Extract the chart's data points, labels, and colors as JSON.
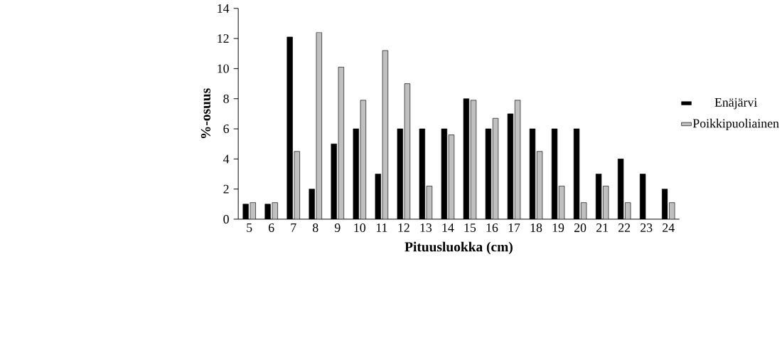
{
  "chart_data": {
    "type": "bar",
    "xlabel": "Pituusluokka (cm)",
    "ylabel": "%-osuus",
    "categories": [
      "5",
      "6",
      "7",
      "8",
      "9",
      "10",
      "11",
      "12",
      "13",
      "14",
      "15",
      "16",
      "17",
      "18",
      "19",
      "20",
      "21",
      "22",
      "23",
      "24"
    ],
    "series": [
      {
        "name": "Enäjärvi",
        "color": "#000000",
        "values": [
          1,
          1,
          12.1,
          2,
          5,
          6,
          3,
          6,
          6,
          6,
          8,
          6,
          7,
          6,
          6,
          6,
          3,
          4,
          3,
          2
        ]
      },
      {
        "name": "Poikkipuoliainen",
        "color": "#c0c0c0",
        "values": [
          1.1,
          1.1,
          4.5,
          12.4,
          10.1,
          7.9,
          11.2,
          9.0,
          2.2,
          5.6,
          7.9,
          6.7,
          7.9,
          4.5,
          2.2,
          1.1,
          2.2,
          1.1,
          null,
          1.1
        ]
      }
    ],
    "ylim": [
      0,
      14
    ],
    "yticks": [
      0,
      2,
      4,
      6,
      8,
      10,
      12,
      14
    ],
    "legend": "right"
  }
}
